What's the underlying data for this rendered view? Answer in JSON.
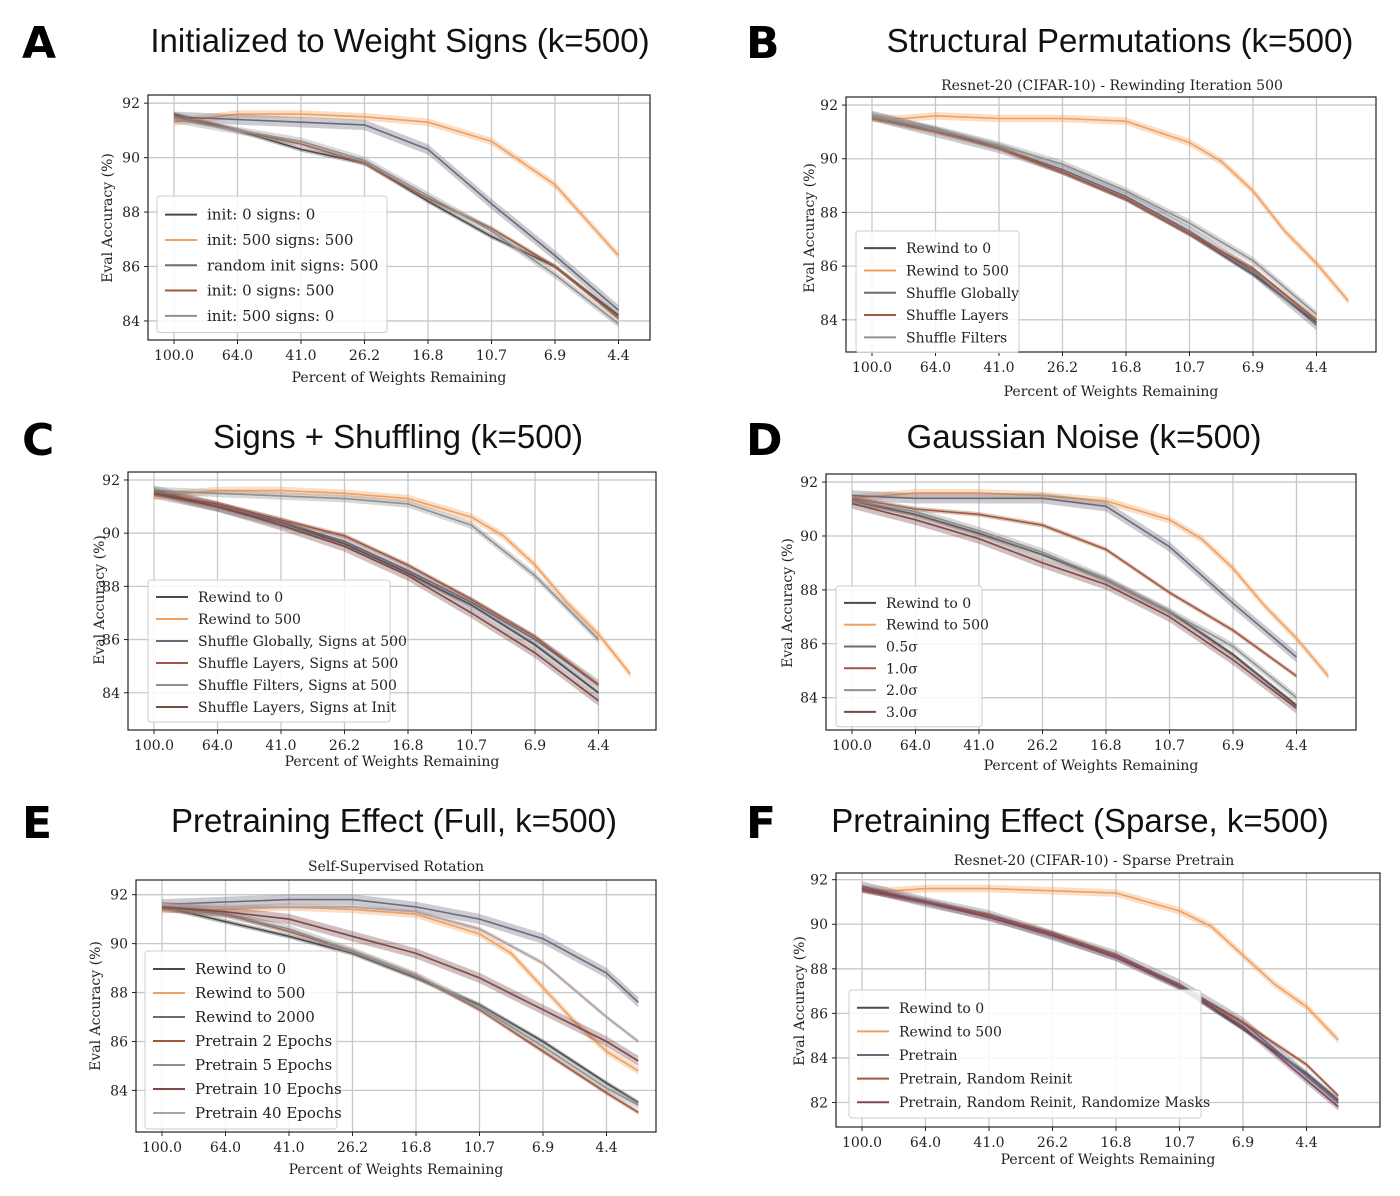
{
  "chart_data": [
    {
      "letter": "A",
      "title": "Initialized to Weight Signs (k=500)",
      "subtitle": "",
      "type": "line",
      "xlabel": "Percent of Weights Remaining",
      "ylabel": "Eval Accuracy (%)",
      "xticks": [
        "100.0",
        "64.0",
        "41.0",
        "26.2",
        "16.8",
        "10.7",
        "6.9",
        "4.4"
      ],
      "yticks": [
        84,
        86,
        88,
        90,
        92
      ],
      "ylim": [
        83.3,
        92.3
      ],
      "x_index_max": 7,
      "grid": true,
      "legend_position": "lower-left",
      "series": [
        {
          "name": "init: 0 signs: 0",
          "color": "#4a4a4a",
          "x": [
            0,
            1,
            2,
            3,
            4,
            5,
            6,
            7
          ],
          "y": [
            91.6,
            91.0,
            90.3,
            89.8,
            88.4,
            87.1,
            86.0,
            84.2
          ]
        },
        {
          "name": "init: 500 signs: 500",
          "color": "#f0a060",
          "x": [
            0,
            1,
            2,
            3,
            4,
            5,
            6,
            7
          ],
          "y": [
            91.3,
            91.6,
            91.6,
            91.5,
            91.3,
            90.6,
            89.0,
            86.4
          ]
        },
        {
          "name": "random init  signs: 500",
          "color": "#6a6a7a",
          "x": [
            0,
            1,
            2,
            3,
            4,
            5,
            6,
            7
          ],
          "y": [
            91.5,
            91.4,
            91.3,
            91.2,
            90.3,
            88.3,
            86.4,
            84.4
          ]
        },
        {
          "name": "init: 0 signs: 500",
          "color": "#a0583e",
          "x": [
            0,
            1,
            2,
            3,
            4,
            5,
            6,
            7
          ],
          "y": [
            91.5,
            91.0,
            90.5,
            89.8,
            88.5,
            87.4,
            86.0,
            84.1
          ]
        },
        {
          "name": "init: 500 signs: 0",
          "color": "#909090",
          "x": [
            0,
            1,
            2,
            3,
            4,
            5,
            6,
            7
          ],
          "y": [
            91.4,
            91.0,
            90.6,
            89.9,
            88.6,
            87.3,
            85.7,
            83.9
          ]
        }
      ]
    },
    {
      "letter": "B",
      "title": "Structural Permutations (k=500)",
      "subtitle": "Resnet-20 (CIFAR-10) - Rewinding Iteration 500",
      "type": "line",
      "xlabel": "Percent of Weights Remaining",
      "ylabel": "Eval Accuracy (%)",
      "xticks": [
        "100.0",
        "64.0",
        "41.0",
        "26.2",
        "16.8",
        "10.7",
        "6.9",
        "4.4"
      ],
      "yticks": [
        84,
        86,
        88,
        90,
        92
      ],
      "ylim": [
        82.8,
        92.3
      ],
      "x_index_max": 7.5,
      "grid": true,
      "legend_position": "lower-left",
      "series": [
        {
          "name": "Rewind to 0",
          "color": "#4a4a4a",
          "x": [
            0,
            1,
            2,
            3,
            4,
            5,
            6,
            7
          ],
          "y": [
            91.6,
            91.1,
            90.4,
            89.5,
            88.5,
            87.2,
            85.7,
            83.9
          ]
        },
        {
          "name": "Rewind to 500",
          "color": "#f0a060",
          "x": [
            0,
            0.5,
            1,
            2,
            3,
            4,
            5,
            5.5,
            6,
            6.5,
            7,
            7.5
          ],
          "y": [
            91.5,
            91.5,
            91.6,
            91.5,
            91.5,
            91.4,
            90.6,
            89.9,
            88.8,
            87.3,
            86.1,
            84.7
          ]
        },
        {
          "name": "Shuffle Globally",
          "color": "#6a6a7a",
          "x": [
            0,
            1,
            2,
            3,
            4,
            5,
            6,
            7
          ],
          "y": [
            91.6,
            91.0,
            90.4,
            89.6,
            88.6,
            87.3,
            85.8,
            83.8
          ]
        },
        {
          "name": "Shuffle Layers",
          "color": "#a0583e",
          "x": [
            0,
            1,
            2,
            3,
            4,
            5,
            6,
            7
          ],
          "y": [
            91.5,
            91.0,
            90.4,
            89.5,
            88.5,
            87.2,
            85.9,
            84.0
          ]
        },
        {
          "name": "Shuffle Filters",
          "color": "#909090",
          "x": [
            0,
            1,
            2,
            3,
            4,
            5,
            6,
            7
          ],
          "y": [
            91.6,
            91.1,
            90.5,
            89.8,
            88.8,
            87.6,
            86.2,
            84.2
          ]
        }
      ]
    },
    {
      "letter": "C",
      "title": "Signs + Shuffling (k=500)",
      "subtitle": "",
      "type": "line",
      "xlabel": "Percent of Weights Remaining",
      "ylabel": "Eval Accuracy (%)",
      "xticks": [
        "100.0",
        "64.0",
        "41.0",
        "26.2",
        "16.8",
        "10.7",
        "6.9",
        "4.4"
      ],
      "yticks": [
        84,
        86,
        88,
        90,
        92
      ],
      "ylim": [
        82.6,
        92.3
      ],
      "x_index_max": 7.5,
      "grid": true,
      "legend_position": "lower-left",
      "series": [
        {
          "name": "Rewind to 0",
          "color": "#4a4a4a",
          "x": [
            0,
            1,
            2,
            3,
            4,
            5,
            6,
            7
          ],
          "y": [
            91.5,
            91.0,
            90.4,
            89.6,
            88.5,
            87.3,
            85.8,
            84.0
          ]
        },
        {
          "name": "Rewind to 500",
          "color": "#f0a060",
          "x": [
            0,
            0.5,
            1,
            2,
            3,
            4,
            5,
            5.5,
            6,
            6.5,
            7,
            7.5
          ],
          "y": [
            91.4,
            91.5,
            91.6,
            91.6,
            91.5,
            91.3,
            90.6,
            89.9,
            88.8,
            87.4,
            86.2,
            84.7
          ]
        },
        {
          "name": "Shuffle Globally, Signs at 500",
          "color": "#6a6a7a",
          "x": [
            0,
            1,
            2,
            3,
            4,
            5,
            6,
            7
          ],
          "y": [
            91.6,
            91.0,
            90.4,
            89.7,
            88.6,
            87.4,
            86.0,
            84.3
          ]
        },
        {
          "name": "Shuffle Layers, Signs at 500",
          "color": "#a0583e",
          "x": [
            0,
            1,
            2,
            3,
            4,
            5,
            6,
            7
          ],
          "y": [
            91.5,
            91.1,
            90.5,
            89.9,
            88.8,
            87.5,
            86.1,
            84.3
          ]
        },
        {
          "name": "Shuffle Filters, Signs at 500",
          "color": "#909090",
          "x": [
            0,
            1,
            2,
            3,
            4,
            5,
            6,
            7
          ],
          "y": [
            91.6,
            91.5,
            91.4,
            91.3,
            91.1,
            90.3,
            88.4,
            86.0
          ]
        },
        {
          "name": "Shuffle Layers, Signs at Init",
          "color": "#7a4a48",
          "x": [
            0,
            1,
            2,
            3,
            4,
            5,
            6,
            7
          ],
          "y": [
            91.5,
            91.0,
            90.3,
            89.5,
            88.4,
            87.0,
            85.5,
            83.7
          ]
        }
      ]
    },
    {
      "letter": "D",
      "title": "Gaussian Noise (k=500)",
      "subtitle": "",
      "type": "line",
      "xlabel": "Percent of Weights Remaining",
      "ylabel": "Eval Accuracy (%)",
      "xticks": [
        "100.0",
        "64.0",
        "41.0",
        "26.2",
        "16.8",
        "10.7",
        "6.9",
        "4.4"
      ],
      "yticks": [
        84,
        86,
        88,
        90,
        92
      ],
      "ylim": [
        82.8,
        92.3
      ],
      "x_index_max": 7.5,
      "grid": true,
      "legend_position": "lower-left",
      "series": [
        {
          "name": "Rewind to 0",
          "color": "#4a4a4a",
          "x": [
            0,
            1,
            2,
            3,
            4,
            5,
            6,
            7
          ],
          "y": [
            91.3,
            90.8,
            90.1,
            89.3,
            88.4,
            87.2,
            85.6,
            83.7
          ]
        },
        {
          "name": "Rewind to 500",
          "color": "#f0a060",
          "x": [
            0,
            0.5,
            1,
            2,
            3,
            4,
            5,
            5.5,
            6,
            6.5,
            7,
            7.5
          ],
          "y": [
            91.4,
            91.5,
            91.6,
            91.6,
            91.5,
            91.3,
            90.6,
            89.9,
            88.8,
            87.4,
            86.2,
            84.8
          ]
        },
        {
          "name": "0.5σ",
          "color": "#6a6a7a",
          "x": [
            0,
            1,
            2,
            3,
            4,
            5,
            6,
            7
          ],
          "y": [
            91.5,
            91.4,
            91.4,
            91.4,
            91.1,
            89.6,
            87.5,
            85.5
          ]
        },
        {
          "name": "1.0σ",
          "color": "#a0583e",
          "x": [
            0,
            1,
            2,
            3,
            4,
            5,
            6,
            7
          ],
          "y": [
            91.4,
            91.0,
            90.8,
            90.4,
            89.5,
            87.9,
            86.5,
            84.8
          ]
        },
        {
          "name": "2.0σ",
          "color": "#909090",
          "x": [
            0,
            1,
            2,
            3,
            4,
            5,
            6,
            7
          ],
          "y": [
            91.3,
            90.9,
            90.2,
            89.4,
            88.4,
            87.2,
            85.9,
            84.0
          ]
        },
        {
          "name": "3.0σ",
          "color": "#7a4a48",
          "x": [
            0,
            1,
            2,
            3,
            4,
            5,
            6,
            7
          ],
          "y": [
            91.2,
            90.6,
            89.9,
            89.0,
            88.2,
            87.0,
            85.4,
            83.6
          ]
        }
      ]
    },
    {
      "letter": "E",
      "title": "Pretraining Effect (Full, k=500)",
      "subtitle": "Self-Supervised Rotation",
      "type": "line",
      "xlabel": "Percent of Weights Remaining",
      "ylabel": "Eval Accuracy (%)",
      "xticks": [
        "100.0",
        "64.0",
        "41.0",
        "26.2",
        "16.8",
        "10.7",
        "6.9",
        "4.4"
      ],
      "yticks": [
        84,
        86,
        88,
        90,
        92
      ],
      "ylim": [
        82.3,
        92.6
      ],
      "x_index_max": 7.5,
      "grid": true,
      "legend_position": "lower-left",
      "series": [
        {
          "name": "Rewind to 0",
          "color": "#4a4a4a",
          "x": [
            0,
            1,
            2,
            3,
            4,
            5,
            6,
            7,
            7.5
          ],
          "y": [
            91.5,
            90.9,
            90.3,
            89.6,
            88.6,
            87.5,
            86.0,
            84.3,
            83.5
          ]
        },
        {
          "name": "Rewind to 500",
          "color": "#f0a060",
          "x": [
            0,
            1,
            2,
            3,
            4,
            5,
            5.5,
            6,
            6.5,
            7,
            7.5
          ],
          "y": [
            91.4,
            91.4,
            91.5,
            91.4,
            91.2,
            90.4,
            89.6,
            88.2,
            86.8,
            85.6,
            84.8
          ]
        },
        {
          "name": "Rewind to 2000",
          "color": "#6a6a7a",
          "x": [
            0,
            1,
            2,
            3,
            4,
            5,
            6,
            7,
            7.5
          ],
          "y": [
            91.6,
            91.7,
            91.8,
            91.8,
            91.5,
            91.0,
            90.2,
            88.8,
            87.6
          ]
        },
        {
          "name": "Pretrain 2 Epochs",
          "color": "#a0583e",
          "x": [
            0,
            1,
            2,
            3,
            4,
            5,
            6,
            7,
            7.5
          ],
          "y": [
            91.5,
            91.2,
            90.5,
            89.7,
            88.7,
            87.3,
            85.6,
            83.9,
            83.1
          ]
        },
        {
          "name": "Pretrain 5 Epochs",
          "color": "#909090",
          "x": [
            0,
            1,
            2,
            3,
            4,
            5,
            6,
            7,
            7.5
          ],
          "y": [
            91.5,
            91.2,
            90.6,
            89.7,
            88.7,
            87.4,
            85.8,
            84.1,
            83.4
          ]
        },
        {
          "name": "Pretrain 10 Epochs",
          "color": "#7a4a48",
          "x": [
            0,
            1,
            2,
            3,
            4,
            5,
            6,
            7,
            7.5
          ],
          "y": [
            91.5,
            91.3,
            91.0,
            90.3,
            89.6,
            88.6,
            87.3,
            86.0,
            85.2
          ]
        },
        {
          "name": "Pretrain 40 Epochs",
          "color": "#b0a0a0",
          "x": [
            0,
            1,
            2,
            3,
            4,
            5,
            6,
            7,
            7.5
          ],
          "y": [
            91.6,
            91.5,
            91.5,
            91.5,
            91.3,
            90.6,
            89.2,
            87.0,
            86.0
          ]
        }
      ]
    },
    {
      "letter": "F",
      "title": "Pretraining Effect (Sparse, k=500)",
      "subtitle": "Resnet-20 (CIFAR-10) - Sparse Pretrain",
      "type": "line",
      "xlabel": "Percent of Weights Remaining",
      "ylabel": "Eval Accuracy (%)",
      "xticks": [
        "100.0",
        "64.0",
        "41.0",
        "26.2",
        "16.8",
        "10.7",
        "6.9",
        "4.4"
      ],
      "yticks": [
        82,
        84,
        86,
        88,
        90,
        92
      ],
      "ylim": [
        80.9,
        92.3
      ],
      "x_index_max": 7.5,
      "grid": true,
      "legend_position": "lower-left",
      "series": [
        {
          "name": "Rewind to 0",
          "color": "#4a4a4a",
          "x": [
            0,
            1,
            2,
            3,
            4,
            5,
            6,
            7,
            7.5
          ],
          "y": [
            91.6,
            91.0,
            90.4,
            89.5,
            88.6,
            87.2,
            85.3,
            83.3,
            82.1
          ]
        },
        {
          "name": "Rewind to 500",
          "color": "#f0a060",
          "x": [
            0,
            0.5,
            1,
            2,
            3,
            4,
            5,
            5.5,
            6,
            6.5,
            7,
            7.5
          ],
          "y": [
            91.6,
            91.5,
            91.6,
            91.6,
            91.5,
            91.4,
            90.6,
            89.9,
            88.6,
            87.3,
            86.3,
            84.8
          ]
        },
        {
          "name": "Pretrain",
          "color": "#6a6a7a",
          "x": [
            0,
            1,
            2,
            3,
            4,
            5,
            6,
            7,
            7.5
          ],
          "y": [
            91.7,
            91.0,
            90.4,
            89.5,
            88.6,
            87.3,
            85.6,
            83.2,
            82.0
          ]
        },
        {
          "name": "Pretrain, Random Reinit",
          "color": "#a0583e",
          "x": [
            0,
            1,
            2,
            3,
            4,
            5,
            6,
            7,
            7.5
          ],
          "y": [
            91.5,
            91.0,
            90.4,
            89.6,
            88.6,
            87.2,
            85.6,
            83.7,
            82.3
          ]
        },
        {
          "name": "Pretrain, Random Reinit, Randomize Masks",
          "color": "#7a4a60",
          "x": [
            0,
            1,
            2,
            3,
            4,
            5,
            6,
            7,
            7.5
          ],
          "y": [
            91.6,
            91.0,
            90.3,
            89.5,
            88.5,
            87.2,
            85.4,
            83.0,
            81.8
          ]
        }
      ]
    }
  ]
}
